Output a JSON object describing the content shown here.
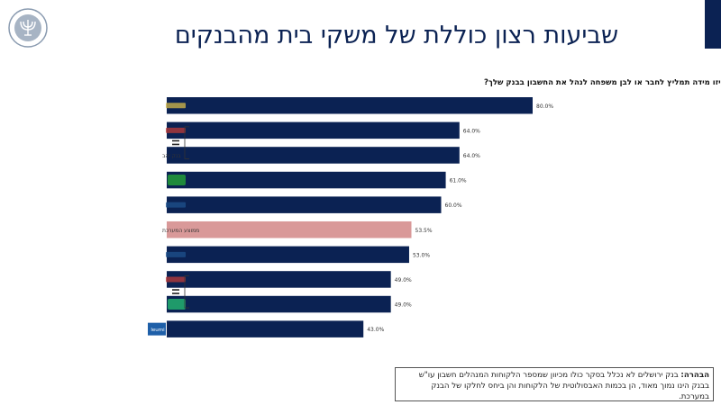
{
  "page": {
    "title": "שביעות רצון כוללת של משקי בית מהבנקים"
  },
  "logo": {
    "name": "Bank of Israel seal",
    "icon": "menorah-seal-icon",
    "color": "#8a9bb0"
  },
  "chart_data": {
    "type": "bar",
    "orientation": "horizontal",
    "title": "באיזו מידה תמליץ לחבר או לבן משפחה לנהל את החשבון בבנק שלך?",
    "categories": [
      "Bank 1 (logo)",
      "Bank 2 (logo)",
      "בנק יהב",
      "Bank 4 (logo)",
      "Bank 5 (logo)",
      "ממוצע המערכת",
      "Bank 7 (logo)",
      "Bank 8 (logo)",
      "Bank 9 (logo)",
      "leumi"
    ],
    "category_labels_visible": [
      "",
      "",
      "בנק יהב",
      "",
      "",
      "ממוצע המערכת",
      "",
      "",
      "",
      "leumi"
    ],
    "values": [
      80.0,
      64.0,
      64.0,
      61.0,
      60.0,
      53.5,
      53.0,
      49.0,
      49.0,
      43.0
    ],
    "value_labels": [
      "80.0%",
      "64.0%",
      "64.0%",
      "61.0%",
      "60.0%",
      "53.5%",
      "53.0%",
      "49.0%",
      "49.0%",
      "43.0%"
    ],
    "highlight_index": 5,
    "xlim": [
      0,
      100
    ],
    "grid": false,
    "colors": {
      "bar": "#0b2253",
      "highlight": "#d99999",
      "text": "#222222"
    },
    "bracket_groups": [
      [
        1,
        2
      ],
      [
        7,
        8
      ]
    ]
  },
  "footnote": {
    "bold": "הבהרה:",
    "text": " בנק ירושלים לא נכלל בסקר כולו מכיוון שמספר הלקוחות המנהלים חשבון עו\"ש בבנק הינו נמוך מאוד, הן בכמות האבסולוטית של הלקוחות והן ביחס לחלקו של הבנק במערכת."
  }
}
